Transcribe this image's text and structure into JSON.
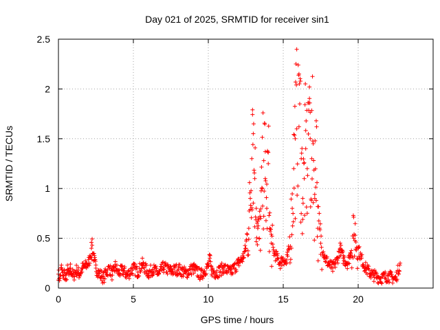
{
  "chart_data": {
    "type": "scatter",
    "title": "Day 021 of 2025, SRMTID for receiver sin1",
    "xlabel": "GPS time / hours",
    "ylabel": "SRMTID / TECUs",
    "xlim": [
      0,
      25
    ],
    "ylim": [
      0,
      2.5
    ],
    "xticks": [
      0,
      5,
      10,
      15,
      20
    ],
    "xtick_labels": [
      "0",
      "5",
      "10",
      "15",
      "20"
    ],
    "yticks": [
      0,
      0.5,
      1,
      1.5,
      2,
      2.5
    ],
    "ytick_labels": [
      "0",
      "0.5",
      "1",
      "1.5",
      "2",
      "2.5"
    ],
    "grid": true,
    "marker": "+",
    "color": "#ff0000",
    "series": [
      {
        "name": "SRMTID",
        "sampled_points": [
          [
            0.0,
            0.14
          ],
          [
            0.1,
            0.1
          ],
          [
            0.2,
            0.2
          ],
          [
            0.3,
            0.12
          ],
          [
            0.4,
            0.16
          ],
          [
            0.5,
            0.08
          ],
          [
            0.6,
            0.18
          ],
          [
            0.7,
            0.13
          ],
          [
            0.8,
            0.2
          ],
          [
            0.9,
            0.15
          ],
          [
            1.0,
            0.12
          ],
          [
            1.2,
            0.18
          ],
          [
            1.4,
            0.14
          ],
          [
            1.6,
            0.2
          ],
          [
            1.8,
            0.22
          ],
          [
            2.0,
            0.25
          ],
          [
            2.1,
            0.3
          ],
          [
            2.2,
            0.4
          ],
          [
            2.25,
            0.43
          ],
          [
            2.3,
            0.35
          ],
          [
            2.4,
            0.28
          ],
          [
            2.5,
            0.2
          ],
          [
            2.7,
            0.15
          ],
          [
            2.9,
            0.12
          ],
          [
            3.0,
            0.1
          ],
          [
            3.2,
            0.16
          ],
          [
            3.4,
            0.2
          ],
          [
            3.6,
            0.13
          ],
          [
            3.8,
            0.22
          ],
          [
            4.0,
            0.15
          ],
          [
            4.3,
            0.18
          ],
          [
            4.6,
            0.13
          ],
          [
            5.0,
            0.2
          ],
          [
            5.3,
            0.16
          ],
          [
            5.6,
            0.24
          ],
          [
            6.0,
            0.15
          ],
          [
            6.3,
            0.19
          ],
          [
            6.7,
            0.14
          ],
          [
            7.0,
            0.21
          ],
          [
            7.5,
            0.17
          ],
          [
            8.0,
            0.19
          ],
          [
            8.5,
            0.15
          ],
          [
            9.0,
            0.2
          ],
          [
            9.5,
            0.13
          ],
          [
            10.0,
            0.22
          ],
          [
            10.1,
            0.3
          ],
          [
            10.2,
            0.18
          ],
          [
            10.5,
            0.15
          ],
          [
            11.0,
            0.2
          ],
          [
            11.5,
            0.16
          ],
          [
            12.0,
            0.25
          ],
          [
            12.3,
            0.3
          ],
          [
            12.5,
            0.4
          ],
          [
            12.7,
            0.6
          ],
          [
            12.8,
            0.9
          ],
          [
            12.9,
            1.3
          ],
          [
            12.95,
            1.79
          ],
          [
            13.0,
            1.55
          ],
          [
            13.1,
            1.1
          ],
          [
            13.2,
            0.8
          ],
          [
            13.3,
            0.6
          ],
          [
            13.4,
            0.5
          ],
          [
            13.5,
            0.7
          ],
          [
            13.6,
            1.0
          ],
          [
            13.7,
            1.28
          ],
          [
            13.8,
            1.1
          ],
          [
            13.9,
            0.8
          ],
          [
            14.0,
            1.25
          ],
          [
            14.1,
            0.6
          ],
          [
            14.2,
            0.45
          ],
          [
            14.4,
            0.35
          ],
          [
            14.6,
            0.3
          ],
          [
            14.8,
            0.25
          ],
          [
            15.0,
            0.3
          ],
          [
            15.2,
            0.25
          ],
          [
            15.4,
            0.4
          ],
          [
            15.6,
            0.8
          ],
          [
            15.7,
            1.2
          ],
          [
            15.8,
            1.5
          ],
          [
            15.9,
            1.6
          ],
          [
            16.0,
            2.24
          ],
          [
            16.05,
            2.15
          ],
          [
            16.1,
            1.85
          ],
          [
            16.2,
            1.3
          ],
          [
            16.3,
            0.9
          ],
          [
            16.4,
            1.1
          ],
          [
            16.5,
            1.4
          ],
          [
            16.6,
            1.2
          ],
          [
            16.7,
            1.86
          ],
          [
            16.75,
            2.02
          ],
          [
            16.8,
            1.5
          ],
          [
            16.9,
            1.3
          ],
          [
            17.0,
            1.45
          ],
          [
            17.1,
            0.9
          ],
          [
            17.2,
            1.68
          ],
          [
            17.3,
            0.6
          ],
          [
            17.5,
            0.45
          ],
          [
            17.8,
            0.3
          ],
          [
            18.0,
            0.25
          ],
          [
            18.3,
            0.2
          ],
          [
            18.6,
            0.28
          ],
          [
            18.8,
            0.4
          ],
          [
            19.0,
            0.3
          ],
          [
            19.3,
            0.25
          ],
          [
            19.5,
            0.35
          ],
          [
            19.7,
            0.5
          ],
          [
            19.8,
            0.53
          ],
          [
            20.0,
            0.4
          ],
          [
            20.2,
            0.3
          ],
          [
            20.5,
            0.2
          ],
          [
            20.8,
            0.15
          ],
          [
            21.0,
            0.13
          ],
          [
            21.5,
            0.1
          ],
          [
            22.0,
            0.12
          ],
          [
            22.5,
            0.09
          ],
          [
            22.8,
            0.25
          ]
        ]
      }
    ]
  }
}
